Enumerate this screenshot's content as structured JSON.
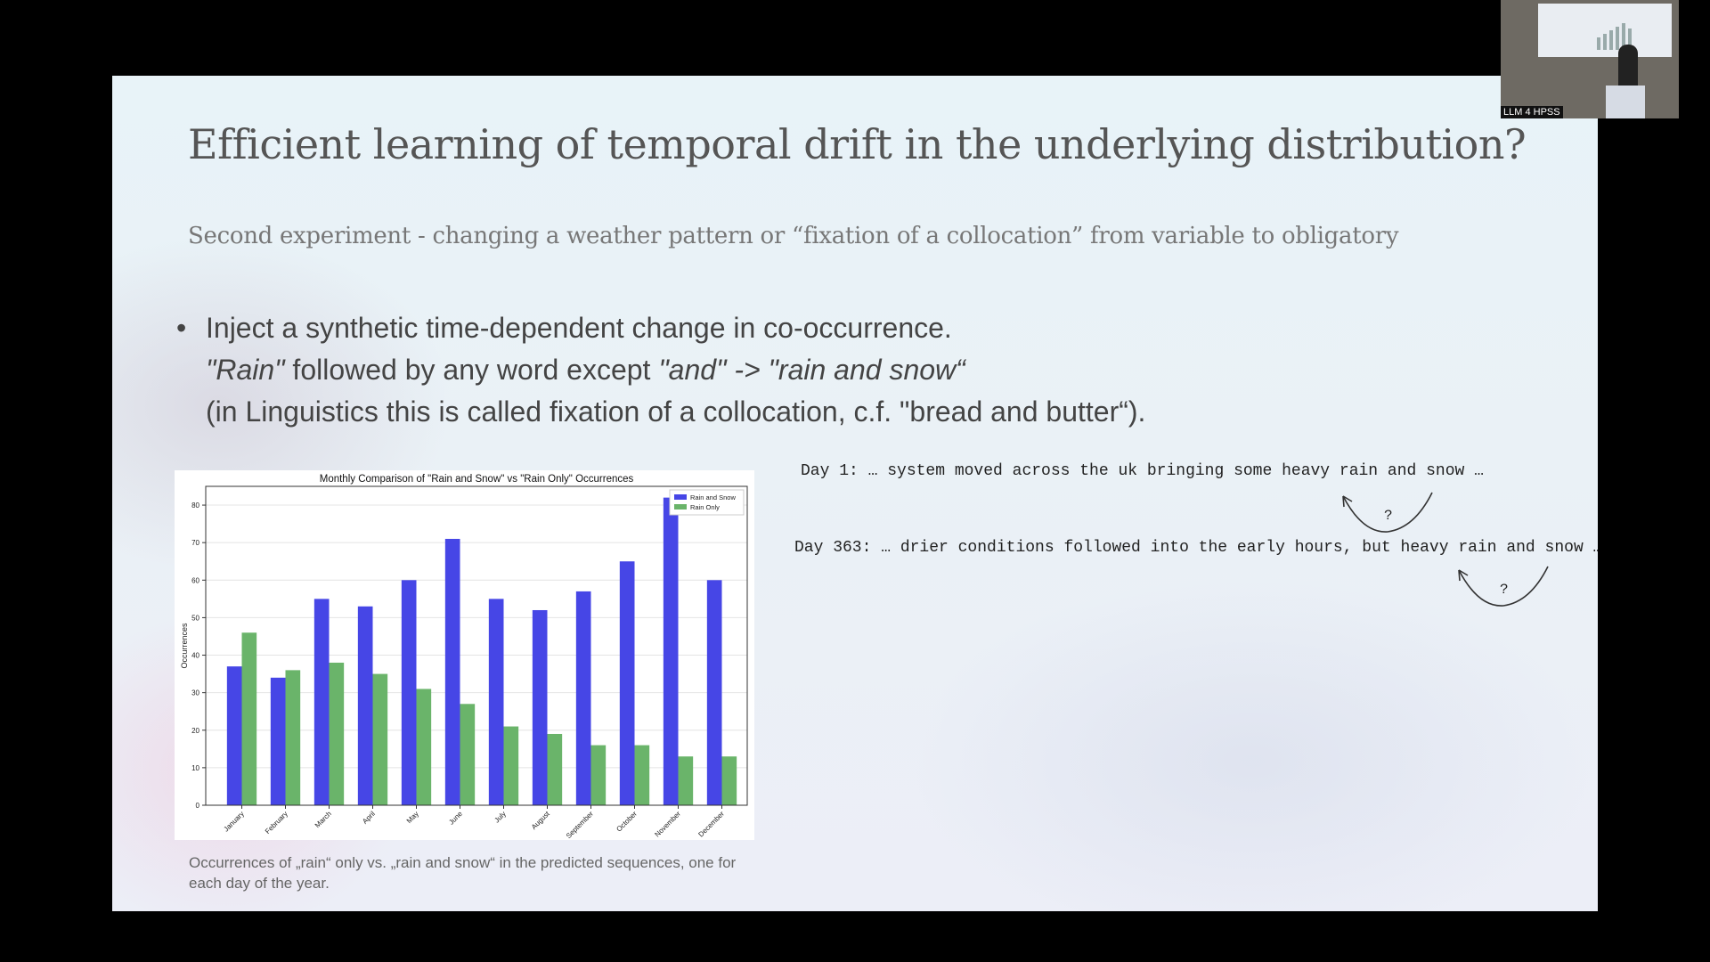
{
  "slide": {
    "title": "Efficient learning of temporal drift in the underlying distribution?",
    "subtitle": "Second experiment - changing a weather pattern or “fixation of a collocation” from variable to obligatory",
    "bullet_line1": "Inject a synthetic time-dependent change in co-occurrence.",
    "bullet_line2_a": "\"Rain\"",
    "bullet_line2_b": " followed by any word except ",
    "bullet_line2_c": "\"and\" -> \"rain and snow“",
    "bullet_line3": "(in Linguistics this is called fixation of a collocation, c.f. \"bread and butter“).",
    "caption": "Occurrences of „rain“ only vs. „rain and snow“ in the predicted sequences, one for each day of the year.",
    "day1_text": "Day 1: … system moved across the uk bringing some heavy rain and snow …",
    "day363_text": "Day 363: … drier conditions followed into the early hours, but heavy rain and snow …",
    "question_mark": "?"
  },
  "pip": {
    "label": "LLM 4 HPSS"
  },
  "colors": {
    "series_rain_and_snow": "#4646e6",
    "series_rain_only": "#6ab46a"
  },
  "chart_data": {
    "type": "bar",
    "title": "Monthly Comparison of \"Rain and Snow\" vs \"Rain Only\" Occurrences",
    "xlabel": "",
    "ylabel": "Occurrences",
    "categories": [
      "January",
      "February",
      "March",
      "April",
      "May",
      "June",
      "July",
      "August",
      "September",
      "October",
      "November",
      "December"
    ],
    "series": [
      {
        "name": "Rain and Snow",
        "values": [
          37,
          34,
          55,
          53,
          60,
          71,
          55,
          52,
          57,
          65,
          82,
          60
        ]
      },
      {
        "name": "Rain Only",
        "values": [
          46,
          36,
          38,
          35,
          31,
          27,
          21,
          19,
          16,
          16,
          13,
          13
        ]
      }
    ],
    "ylim": [
      0,
      85
    ],
    "yticks": [
      0,
      10,
      20,
      30,
      40,
      50,
      60,
      70,
      80
    ],
    "grid": true,
    "legend": "top-right"
  }
}
